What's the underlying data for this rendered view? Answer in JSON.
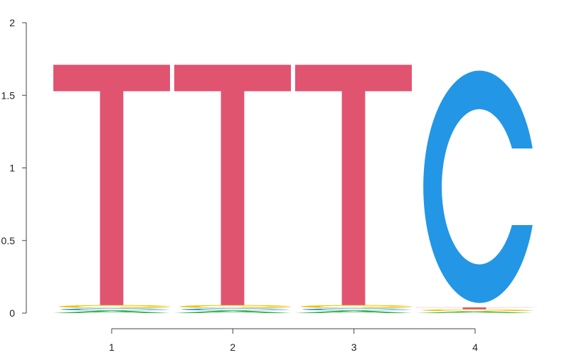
{
  "chart_data": {
    "type": "sequence-logo",
    "title": "",
    "xlabel": "",
    "ylabel": "",
    "ylim": [
      0,
      2
    ],
    "yticks": [
      "0",
      "0.5",
      "1",
      "1.5",
      "2"
    ],
    "positions": [
      "1",
      "2",
      "3",
      "4"
    ],
    "colors": {
      "A": "#3fb43f",
      "C": "#2396e6",
      "G": "#f0c000",
      "T": "#e05470"
    },
    "stacks": [
      [
        {
          "letter": "A",
          "height": 0.018
        },
        {
          "letter": "C",
          "height": 0.015
        },
        {
          "letter": "G",
          "height": 0.022
        },
        {
          "letter": "T",
          "height": 1.655
        }
      ],
      [
        {
          "letter": "A",
          "height": 0.018
        },
        {
          "letter": "C",
          "height": 0.015
        },
        {
          "letter": "G",
          "height": 0.022
        },
        {
          "letter": "T",
          "height": 1.655
        }
      ],
      [
        {
          "letter": "A",
          "height": 0.018
        },
        {
          "letter": "C",
          "height": 0.015
        },
        {
          "letter": "G",
          "height": 0.022
        },
        {
          "letter": "T",
          "height": 1.655
        }
      ],
      [
        {
          "letter": "A",
          "height": 0.012
        },
        {
          "letter": "G",
          "height": 0.014
        },
        {
          "letter": "T",
          "height": 0.014
        },
        {
          "letter": "C",
          "height": 1.66
        }
      ]
    ]
  }
}
